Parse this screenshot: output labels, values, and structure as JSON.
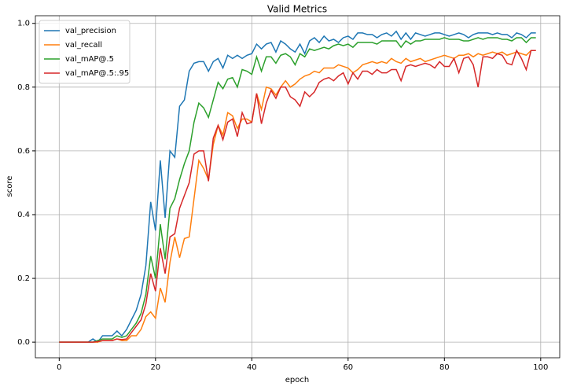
{
  "chart_data": {
    "type": "line",
    "title": "Valid Metrics",
    "x_label": "epoch",
    "y_label": "score",
    "x": [
      0,
      1,
      2,
      3,
      4,
      5,
      6,
      7,
      8,
      9,
      10,
      11,
      12,
      13,
      14,
      15,
      16,
      17,
      18,
      19,
      20,
      21,
      22,
      23,
      24,
      25,
      26,
      27,
      28,
      29,
      30,
      31,
      32,
      33,
      34,
      35,
      36,
      37,
      38,
      39,
      40,
      41,
      42,
      43,
      44,
      45,
      46,
      47,
      48,
      49,
      50,
      51,
      52,
      53,
      54,
      55,
      56,
      57,
      58,
      59,
      60,
      61,
      62,
      63,
      64,
      65,
      66,
      67,
      68,
      69,
      70,
      71,
      72,
      73,
      74,
      75,
      76,
      77,
      78,
      79,
      80,
      81,
      82,
      83,
      84,
      85,
      86,
      87,
      88,
      89,
      90,
      91,
      92,
      93,
      94,
      95,
      96,
      97,
      98,
      99
    ],
    "series": [
      {
        "name": "val_precision",
        "color": "#1f77b4",
        "values": [
          0,
          0,
          0,
          0,
          0,
          0,
          0,
          0.01,
          0,
          0.02,
          0.02,
          0.02,
          0.035,
          0.02,
          0.04,
          0.07,
          0.1,
          0.15,
          0.24,
          0.44,
          0.35,
          0.57,
          0.39,
          0.6,
          0.58,
          0.74,
          0.76,
          0.85,
          0.875,
          0.88,
          0.88,
          0.85,
          0.88,
          0.89,
          0.86,
          0.9,
          0.89,
          0.9,
          0.89,
          0.9,
          0.905,
          0.935,
          0.92,
          0.935,
          0.94,
          0.91,
          0.945,
          0.935,
          0.92,
          0.91,
          0.935,
          0.905,
          0.945,
          0.955,
          0.94,
          0.96,
          0.945,
          0.95,
          0.94,
          0.955,
          0.96,
          0.95,
          0.97,
          0.97,
          0.965,
          0.965,
          0.955,
          0.965,
          0.97,
          0.96,
          0.975,
          0.95,
          0.97,
          0.95,
          0.97,
          0.965,
          0.96,
          0.965,
          0.97,
          0.97,
          0.965,
          0.96,
          0.965,
          0.97,
          0.965,
          0.955,
          0.965,
          0.97,
          0.97,
          0.97,
          0.965,
          0.97,
          0.965,
          0.965,
          0.955,
          0.97,
          0.965,
          0.955,
          0.97,
          0.97
        ]
      },
      {
        "name": "val_recall",
        "color": "#ff7f0e",
        "values": [
          0,
          0,
          0,
          0,
          0,
          0,
          0,
          0,
          0,
          0.005,
          0.005,
          0.005,
          0.01,
          0.005,
          0.005,
          0.02,
          0.02,
          0.04,
          0.08,
          0.095,
          0.075,
          0.17,
          0.125,
          0.25,
          0.33,
          0.265,
          0.325,
          0.33,
          0.45,
          0.57,
          0.545,
          0.51,
          0.62,
          0.68,
          0.65,
          0.72,
          0.71,
          0.67,
          0.7,
          0.7,
          0.69,
          0.78,
          0.73,
          0.8,
          0.795,
          0.775,
          0.8,
          0.82,
          0.8,
          0.81,
          0.825,
          0.835,
          0.84,
          0.85,
          0.845,
          0.86,
          0.86,
          0.86,
          0.87,
          0.865,
          0.86,
          0.845,
          0.855,
          0.87,
          0.875,
          0.88,
          0.875,
          0.88,
          0.875,
          0.89,
          0.88,
          0.875,
          0.89,
          0.88,
          0.885,
          0.89,
          0.88,
          0.885,
          0.89,
          0.895,
          0.9,
          0.895,
          0.89,
          0.9,
          0.9,
          0.905,
          0.895,
          0.905,
          0.9,
          0.905,
          0.91,
          0.905,
          0.91,
          0.9,
          0.905,
          0.91,
          0.905,
          0.9,
          0.915,
          0.915
        ]
      },
      {
        "name": "val_mAP@.5",
        "color": "#2ca02c",
        "values": [
          0,
          0,
          0,
          0,
          0,
          0,
          0,
          0,
          0.005,
          0.01,
          0.01,
          0.01,
          0.02,
          0.015,
          0.02,
          0.04,
          0.06,
          0.09,
          0.15,
          0.27,
          0.2,
          0.37,
          0.26,
          0.42,
          0.45,
          0.51,
          0.56,
          0.6,
          0.69,
          0.75,
          0.735,
          0.705,
          0.76,
          0.815,
          0.795,
          0.825,
          0.83,
          0.8,
          0.855,
          0.85,
          0.84,
          0.895,
          0.85,
          0.895,
          0.895,
          0.875,
          0.9,
          0.905,
          0.895,
          0.87,
          0.905,
          0.895,
          0.92,
          0.915,
          0.92,
          0.925,
          0.92,
          0.93,
          0.935,
          0.93,
          0.935,
          0.925,
          0.94,
          0.94,
          0.94,
          0.94,
          0.935,
          0.945,
          0.945,
          0.945,
          0.945,
          0.925,
          0.945,
          0.935,
          0.945,
          0.945,
          0.95,
          0.95,
          0.95,
          0.95,
          0.955,
          0.95,
          0.95,
          0.95,
          0.945,
          0.945,
          0.95,
          0.955,
          0.95,
          0.955,
          0.955,
          0.955,
          0.95,
          0.95,
          0.945,
          0.955,
          0.955,
          0.94,
          0.955,
          0.955
        ]
      },
      {
        "name": "val_mAP@.5:.95",
        "color": "#d62728",
        "values": [
          0,
          0,
          0,
          0,
          0,
          0,
          0,
          0,
          0.002,
          0.005,
          0.005,
          0.005,
          0.01,
          0.008,
          0.01,
          0.03,
          0.05,
          0.07,
          0.12,
          0.215,
          0.16,
          0.295,
          0.215,
          0.33,
          0.34,
          0.42,
          0.46,
          0.5,
          0.59,
          0.6,
          0.6,
          0.505,
          0.64,
          0.68,
          0.635,
          0.69,
          0.7,
          0.645,
          0.72,
          0.685,
          0.69,
          0.78,
          0.685,
          0.75,
          0.79,
          0.765,
          0.8,
          0.8,
          0.77,
          0.76,
          0.74,
          0.785,
          0.77,
          0.785,
          0.815,
          0.825,
          0.83,
          0.82,
          0.835,
          0.845,
          0.81,
          0.845,
          0.825,
          0.85,
          0.85,
          0.84,
          0.855,
          0.845,
          0.845,
          0.855,
          0.855,
          0.82,
          0.865,
          0.87,
          0.865,
          0.87,
          0.875,
          0.87,
          0.86,
          0.88,
          0.865,
          0.865,
          0.89,
          0.845,
          0.89,
          0.895,
          0.87,
          0.8,
          0.895,
          0.895,
          0.89,
          0.905,
          0.9,
          0.875,
          0.87,
          0.915,
          0.89,
          0.855,
          0.915,
          0.915
        ]
      }
    ],
    "xlim": [
      -4.95,
      103.95
    ],
    "ylim": [
      -0.049,
      1.024
    ],
    "xticks": [
      0,
      20,
      40,
      60,
      80,
      100
    ],
    "yticks": [
      {
        "value": 0,
        "label": "0.0"
      },
      0.2,
      0.4,
      0.6,
      0.8,
      {
        "value": 1,
        "label": "1.0"
      }
    ],
    "grid": true,
    "legend": "upper-left"
  }
}
